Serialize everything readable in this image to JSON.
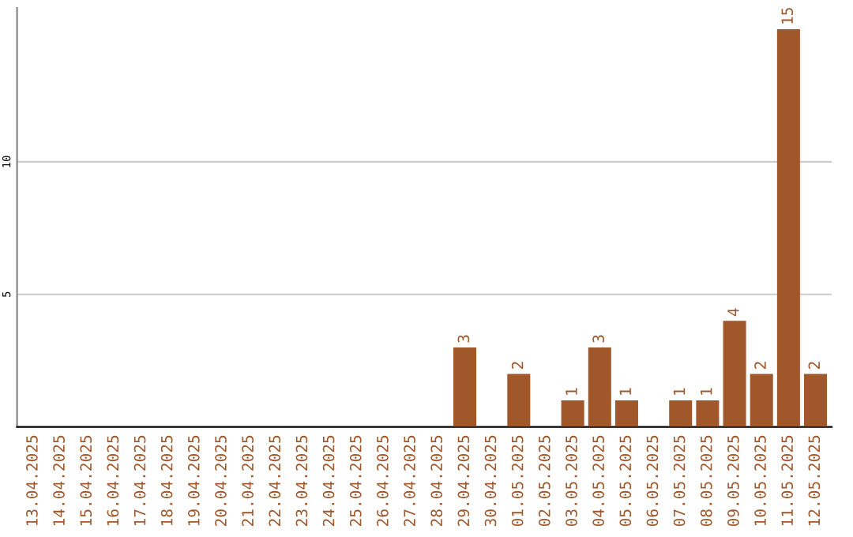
{
  "chart_data": {
    "type": "bar",
    "categories": [
      "13.04.2025",
      "14.04.2025",
      "15.04.2025",
      "16.04.2025",
      "17.04.2025",
      "18.04.2025",
      "19.04.2025",
      "20.04.2025",
      "21.04.2025",
      "22.04.2025",
      "23.04.2025",
      "24.04.2025",
      "25.04.2025",
      "26.04.2025",
      "27.04.2025",
      "28.04.2025",
      "29.04.2025",
      "30.04.2025",
      "01.05.2025",
      "02.05.2025",
      "03.05.2025",
      "04.05.2025",
      "05.05.2025",
      "06.05.2025",
      "07.05.2025",
      "08.05.2025",
      "09.05.2025",
      "10.05.2025",
      "11.05.2025",
      "12.05.2025"
    ],
    "values": [
      0,
      0,
      0,
      0,
      0,
      0,
      0,
      0,
      0,
      0,
      0,
      0,
      0,
      0,
      0,
      0,
      3,
      0,
      2,
      0,
      1,
      3,
      1,
      0,
      1,
      1,
      4,
      2,
      15,
      2
    ],
    "value_labels": [
      null,
      null,
      null,
      null,
      null,
      null,
      null,
      null,
      null,
      null,
      null,
      null,
      null,
      null,
      null,
      null,
      "3",
      null,
      "2",
      null,
      "1",
      "3",
      "1",
      null,
      "1",
      "1",
      "4",
      "2",
      "15",
      "2"
    ],
    "color": "#a0572a",
    "ylim": [
      0,
      15.8
    ],
    "yticks": [
      5,
      10
    ],
    "grid": "y"
  }
}
